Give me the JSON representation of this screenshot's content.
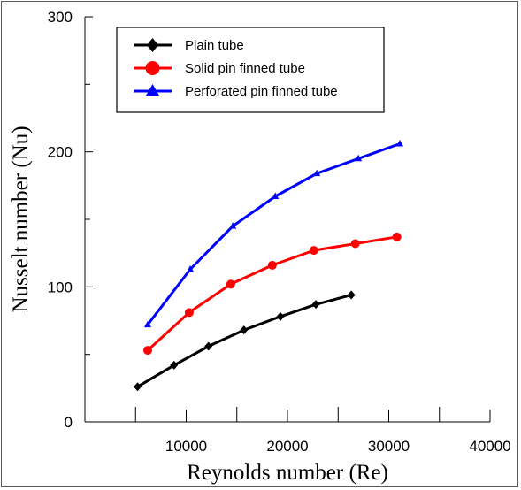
{
  "chart_data": {
    "type": "line",
    "xlabel": "Reynolds number (Re)",
    "ylabel": "Nusselt number (Nu)",
    "xlim": [
      0,
      40000
    ],
    "ylim": [
      0,
      300
    ],
    "x_ticks": [
      "10000",
      "20000",
      "30000",
      "40000"
    ],
    "y_ticks": [
      "0",
      "100",
      "200",
      "300"
    ],
    "legend_position": "top-left",
    "grid": false,
    "series": [
      {
        "name": "Plain tube",
        "color": "#000000",
        "marker": "diamond",
        "points": [
          {
            "x": 5200,
            "y": 26
          },
          {
            "x": 8800,
            "y": 42
          },
          {
            "x": 12200,
            "y": 56
          },
          {
            "x": 15700,
            "y": 68
          },
          {
            "x": 19300,
            "y": 78
          },
          {
            "x": 22800,
            "y": 87
          },
          {
            "x": 26300,
            "y": 94
          }
        ]
      },
      {
        "name": "Solid pin finned tube",
        "color": "#ff0000",
        "marker": "circle",
        "points": [
          {
            "x": 6200,
            "y": 53
          },
          {
            "x": 10300,
            "y": 81
          },
          {
            "x": 14400,
            "y": 102
          },
          {
            "x": 18500,
            "y": 116
          },
          {
            "x": 22600,
            "y": 127
          },
          {
            "x": 26700,
            "y": 132
          },
          {
            "x": 30800,
            "y": 137
          }
        ]
      },
      {
        "name": "Perforated pin finned tube",
        "color": "#0000ff",
        "marker": "triangle",
        "points": [
          {
            "x": 6200,
            "y": 72
          },
          {
            "x": 10400,
            "y": 113
          },
          {
            "x": 14600,
            "y": 145
          },
          {
            "x": 18800,
            "y": 167
          },
          {
            "x": 22900,
            "y": 184
          },
          {
            "x": 27000,
            "y": 195
          },
          {
            "x": 31100,
            "y": 206
          }
        ]
      }
    ]
  }
}
